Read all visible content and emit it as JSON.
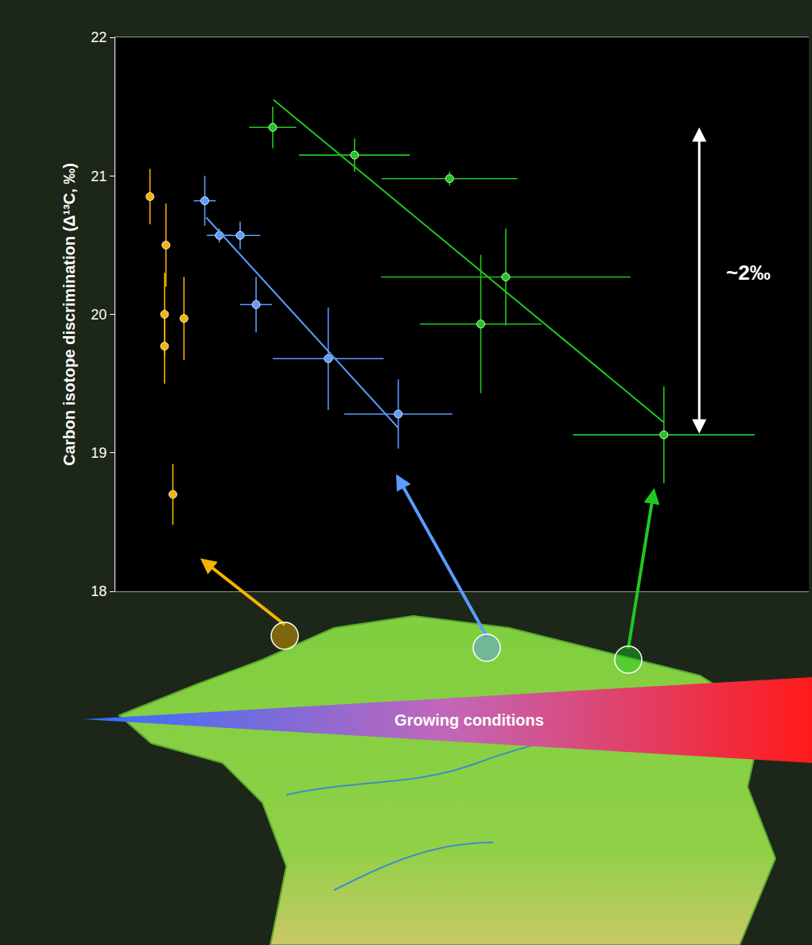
{
  "chart_data": {
    "type": "scatter",
    "y_label": "Carbon isotope discrimination (Δ¹³C, ‰)",
    "xlim": [
      0,
      100
    ],
    "ylim": [
      18,
      22
    ],
    "yticks": [
      18,
      19,
      20,
      21,
      22
    ],
    "tick_labels": "y",
    "grid": false,
    "series": [
      {
        "color": "#f5b400",
        "marker": "circle",
        "x": [
          5.0,
          7.3,
          7.1,
          7.1,
          9.9,
          8.3
        ],
        "values": [
          20.85,
          20.5,
          20.0,
          19.77,
          19.97,
          18.7
        ],
        "yerr": [
          0.2,
          0.3,
          0.3,
          0.27,
          0.3,
          0.22
        ]
      },
      {
        "color": "#5b9cff",
        "marker": "circle",
        "x": [
          12.9,
          15.0,
          18.0,
          20.3,
          30.7,
          40.8
        ],
        "values": [
          20.82,
          20.57,
          20.57,
          20.07,
          19.68,
          19.28
        ],
        "yerr": [
          0.18,
          0.05,
          0.1,
          0.2,
          0.37,
          0.25
        ],
        "xerr": [
          1.6,
          1.8,
          2.9,
          2.3,
          8.0,
          7.8
        ],
        "fit": {
          "x": [
            13.1,
            40.8
          ],
          "y": [
            20.7,
            19.18
          ]
        }
      },
      {
        "color": "#1fc81f",
        "marker": "circle",
        "x": [
          22.7,
          34.5,
          48.2,
          56.3,
          52.7,
          79.1
        ],
        "values": [
          21.35,
          21.15,
          20.98,
          20.27,
          19.93,
          19.13
        ],
        "yerr": [
          0.15,
          0.12,
          0.05,
          0.35,
          0.5,
          0.35
        ],
        "xerr": [
          3.4,
          8.0,
          9.8,
          18.0,
          8.8,
          13.1
        ],
        "fit": {
          "x": [
            22.8,
            79.1
          ],
          "y": [
            21.55,
            19.22
          ]
        }
      }
    ],
    "annotations": [
      {
        "text": "~2‰",
        "x": 91.3,
        "y": 20.3,
        "arrow_x": 84.2,
        "arrow_from": 21.35,
        "arrow_to": 19.13
      }
    ],
    "gradient_label": "Growing conditions"
  }
}
